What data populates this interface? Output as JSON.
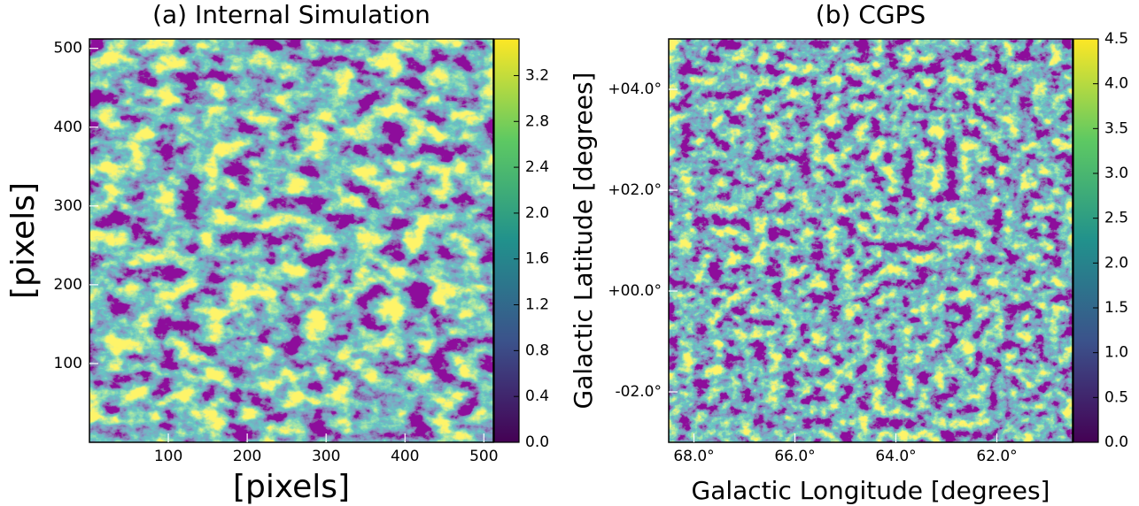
{
  "chart_data": [
    {
      "type": "image",
      "title": "(a) Internal Simulation",
      "xlabel": "[pixels]",
      "ylabel": "[pixels]",
      "xlim": [
        0,
        512
      ],
      "ylim": [
        0,
        512
      ],
      "xticks": [
        100,
        200,
        300,
        400,
        500
      ],
      "yticks": [
        100,
        200,
        300,
        400,
        500
      ],
      "colorbar": {
        "lim": [
          0,
          3.52
        ],
        "ticks": [
          {
            "value": 0,
            "label": "0.0"
          },
          {
            "value": 0.4,
            "label": "0.4"
          },
          {
            "value": 0.8,
            "label": "0.8"
          },
          {
            "value": 1.2,
            "label": "1.2"
          },
          {
            "value": 1.6,
            "label": "1.6"
          },
          {
            "value": 2.0,
            "label": "2.0"
          },
          {
            "value": 2.4,
            "label": "2.4"
          },
          {
            "value": 2.8,
            "label": "2.8"
          },
          {
            "value": 3.2,
            "label": "3.2"
          }
        ]
      }
    },
    {
      "type": "image",
      "title": "(b) CGPS",
      "xlabel": "Galactic Longitude [degrees]",
      "ylabel": "Galactic Latitude [degrees]",
      "xlim": [
        68.5,
        60.5
      ],
      "ylim": [
        -3,
        5
      ],
      "xticks": [
        {
          "value": 68,
          "label": "68.0°"
        },
        {
          "value": 66,
          "label": "66.0°"
        },
        {
          "value": 64,
          "label": "64.0°"
        },
        {
          "value": 62,
          "label": "62.0°"
        }
      ],
      "yticks": [
        {
          "value": -2,
          "label": "-02.0°"
        },
        {
          "value": 0,
          "label": "+00.0°"
        },
        {
          "value": 2,
          "label": "+02.0°"
        },
        {
          "value": 4,
          "label": "+04.0°"
        }
      ],
      "colorbar": {
        "lim": [
          0,
          4.5
        ],
        "ticks": [
          {
            "value": 0,
            "label": "0.0"
          },
          {
            "value": 0.5,
            "label": "0.5"
          },
          {
            "value": 1.0,
            "label": "1.0"
          },
          {
            "value": 1.5,
            "label": "1.5"
          },
          {
            "value": 2.0,
            "label": "2.0"
          },
          {
            "value": 2.5,
            "label": "2.5"
          },
          {
            "value": 3.0,
            "label": "3.0"
          },
          {
            "value": 3.5,
            "label": "3.5"
          },
          {
            "value": 4.0,
            "label": "4.0"
          },
          {
            "value": 4.5,
            "label": "4.5"
          }
        ]
      }
    }
  ]
}
